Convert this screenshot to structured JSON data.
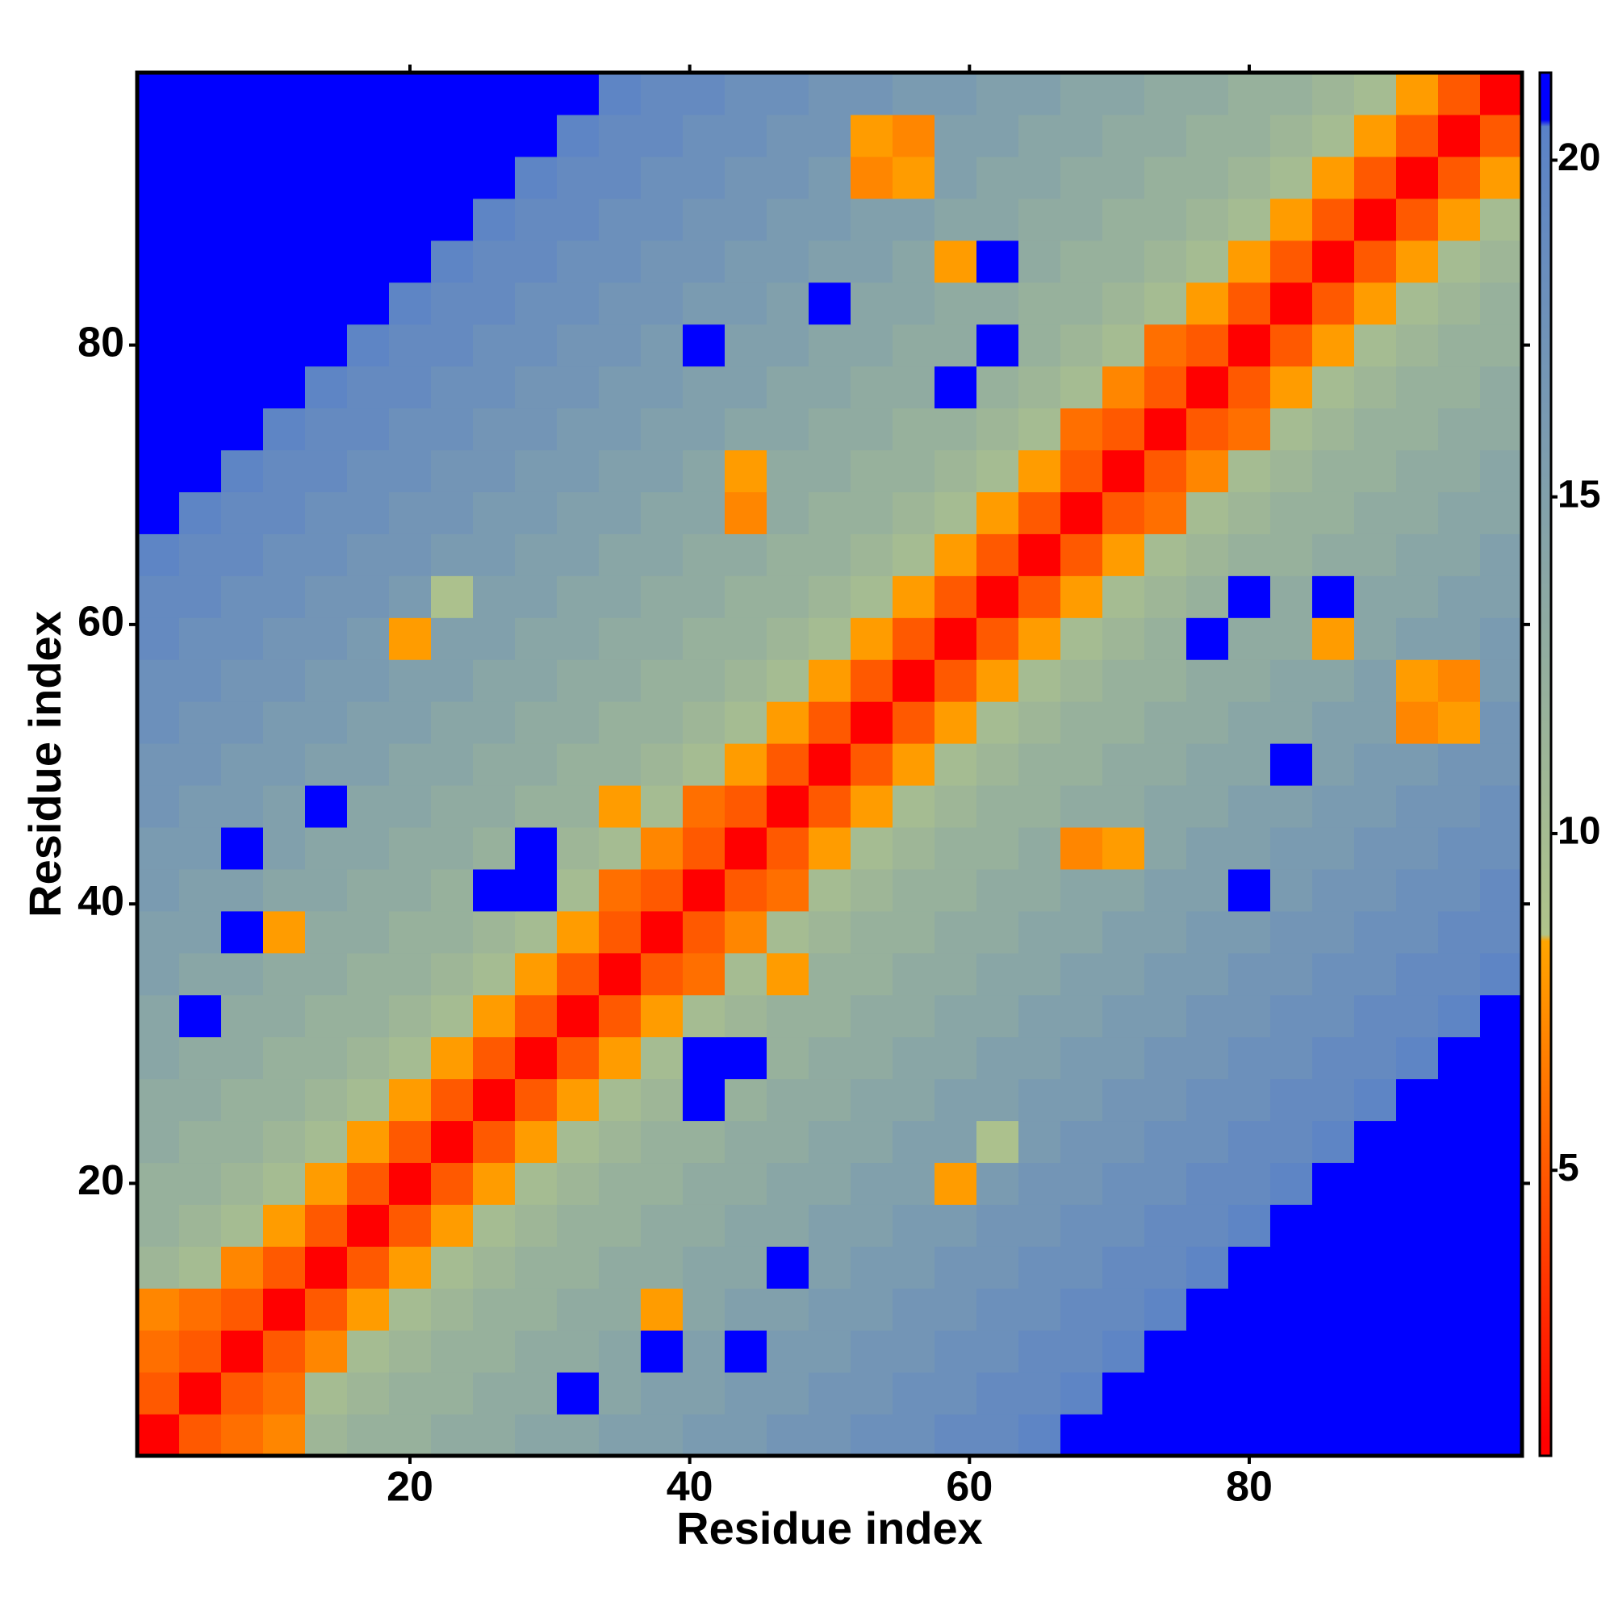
{
  "chart_data": {
    "type": "heatmap",
    "x_label": "Residue index",
    "y_label": "Residue index",
    "x": [
      2,
      5,
      8,
      11,
      14,
      17,
      20,
      23,
      26,
      29,
      32,
      35,
      38,
      41,
      44,
      47,
      50,
      53,
      56,
      59,
      62,
      65,
      68,
      71,
      74,
      77,
      80,
      83,
      86,
      89,
      92,
      95,
      98
    ],
    "y": [
      2,
      5,
      8,
      11,
      14,
      17,
      20,
      23,
      26,
      29,
      32,
      35,
      38,
      41,
      44,
      47,
      50,
      53,
      56,
      59,
      62,
      65,
      68,
      71,
      74,
      77,
      80,
      83,
      86,
      89,
      92,
      95,
      98
    ],
    "z": [
      [
        1,
        5,
        6,
        7,
        11,
        12,
        12,
        13,
        13,
        14,
        14,
        15,
        15,
        16,
        16,
        17,
        17,
        18,
        18,
        19,
        19,
        20,
        21,
        21,
        21,
        21,
        21,
        21,
        21,
        21,
        21,
        21,
        21
      ],
      [
        5,
        1,
        5,
        6,
        10,
        11,
        12,
        12,
        13,
        13,
        21,
        14,
        15,
        15,
        16,
        16,
        17,
        17,
        18,
        18,
        19,
        19,
        20,
        21,
        21,
        21,
        21,
        21,
        21,
        21,
        21,
        21,
        21
      ],
      [
        6,
        5,
        1,
        5,
        7,
        10,
        11,
        12,
        12,
        13,
        13,
        14,
        21,
        15,
        21,
        16,
        16,
        17,
        17,
        18,
        18,
        19,
        19,
        20,
        21,
        21,
        21,
        21,
        21,
        21,
        21,
        21,
        21
      ],
      [
        7,
        6,
        5,
        1,
        5,
        8,
        10,
        11,
        12,
        12,
        13,
        13,
        8,
        14,
        15,
        15,
        16,
        16,
        17,
        17,
        18,
        18,
        19,
        19,
        20,
        21,
        21,
        21,
        21,
        21,
        21,
        21,
        21
      ],
      [
        11,
        10,
        7,
        5,
        1,
        5,
        8,
        10,
        11,
        12,
        12,
        13,
        13,
        14,
        14,
        21,
        15,
        16,
        16,
        17,
        17,
        18,
        18,
        19,
        19,
        20,
        21,
        21,
        21,
        21,
        21,
        21,
        21
      ],
      [
        12,
        11,
        10,
        8,
        5,
        1,
        5,
        8,
        10,
        11,
        12,
        12,
        13,
        13,
        14,
        14,
        15,
        15,
        16,
        16,
        17,
        17,
        18,
        18,
        19,
        19,
        20,
        21,
        21,
        21,
        21,
        21,
        21
      ],
      [
        12,
        12,
        11,
        10,
        8,
        5,
        1,
        5,
        8,
        10,
        11,
        12,
        12,
        13,
        13,
        14,
        14,
        15,
        15,
        8,
        16,
        17,
        17,
        18,
        18,
        19,
        19,
        20,
        21,
        21,
        21,
        21,
        21
      ],
      [
        13,
        12,
        12,
        11,
        10,
        8,
        5,
        1,
        5,
        8,
        10,
        11,
        12,
        12,
        13,
        13,
        14,
        14,
        15,
        15,
        9,
        16,
        17,
        17,
        18,
        18,
        19,
        19,
        20,
        21,
        21,
        21,
        21
      ],
      [
        13,
        13,
        12,
        12,
        11,
        10,
        8,
        5,
        1,
        5,
        8,
        10,
        11,
        21,
        12,
        13,
        13,
        14,
        14,
        15,
        15,
        16,
        16,
        17,
        17,
        18,
        18,
        19,
        19,
        20,
        21,
        21,
        21
      ],
      [
        14,
        13,
        13,
        12,
        12,
        11,
        10,
        8,
        5,
        1,
        5,
        8,
        10,
        21,
        21,
        12,
        13,
        13,
        14,
        14,
        15,
        15,
        16,
        16,
        17,
        17,
        18,
        18,
        19,
        19,
        20,
        21,
        21
      ],
      [
        14,
        21,
        13,
        13,
        12,
        12,
        11,
        10,
        8,
        5,
        1,
        5,
        8,
        10,
        11,
        12,
        12,
        13,
        13,
        14,
        14,
        15,
        15,
        16,
        16,
        17,
        17,
        18,
        18,
        19,
        19,
        20,
        21
      ],
      [
        15,
        14,
        14,
        13,
        13,
        12,
        12,
        11,
        10,
        8,
        5,
        1,
        5,
        6,
        10,
        8,
        12,
        12,
        13,
        13,
        14,
        14,
        15,
        15,
        16,
        16,
        17,
        17,
        18,
        18,
        19,
        19,
        20
      ],
      [
        15,
        15,
        21,
        8,
        13,
        13,
        12,
        12,
        11,
        10,
        8,
        5,
        1,
        5,
        7,
        10,
        11,
        12,
        12,
        13,
        13,
        14,
        14,
        15,
        15,
        16,
        16,
        17,
        17,
        18,
        18,
        19,
        19
      ],
      [
        16,
        15,
        15,
        14,
        14,
        13,
        13,
        12,
        21,
        21,
        10,
        6,
        5,
        1,
        5,
        6,
        10,
        11,
        12,
        12,
        13,
        13,
        14,
        14,
        15,
        15,
        21,
        16,
        17,
        17,
        18,
        18,
        19
      ],
      [
        16,
        16,
        21,
        15,
        14,
        14,
        13,
        13,
        12,
        21,
        11,
        10,
        7,
        5,
        1,
        5,
        8,
        10,
        11,
        12,
        12,
        13,
        7,
        8,
        14,
        15,
        15,
        16,
        16,
        17,
        17,
        18,
        18
      ],
      [
        17,
        16,
        16,
        15,
        21,
        14,
        14,
        13,
        13,
        12,
        12,
        8,
        10,
        6,
        5,
        1,
        5,
        8,
        10,
        11,
        12,
        12,
        13,
        13,
        14,
        14,
        15,
        15,
        16,
        16,
        17,
        17,
        18
      ],
      [
        17,
        17,
        16,
        16,
        15,
        15,
        14,
        14,
        13,
        13,
        12,
        12,
        11,
        10,
        8,
        5,
        1,
        5,
        8,
        10,
        11,
        12,
        12,
        13,
        13,
        14,
        14,
        21,
        15,
        16,
        16,
        17,
        17
      ],
      [
        18,
        17,
        17,
        16,
        16,
        15,
        15,
        14,
        14,
        13,
        13,
        12,
        12,
        11,
        10,
        8,
        5,
        1,
        5,
        8,
        10,
        11,
        12,
        12,
        13,
        13,
        14,
        14,
        15,
        15,
        7,
        8,
        17
      ],
      [
        18,
        18,
        17,
        17,
        16,
        16,
        15,
        15,
        14,
        14,
        13,
        13,
        12,
        12,
        11,
        10,
        8,
        5,
        1,
        5,
        8,
        10,
        11,
        12,
        12,
        13,
        13,
        14,
        14,
        15,
        8,
        7,
        16
      ],
      [
        19,
        18,
        18,
        17,
        17,
        16,
        8,
        15,
        15,
        14,
        14,
        13,
        13,
        12,
        12,
        11,
        10,
        8,
        5,
        1,
        5,
        8,
        10,
        11,
        12,
        21,
        13,
        13,
        8,
        14,
        15,
        15,
        16
      ],
      [
        19,
        19,
        18,
        18,
        17,
        17,
        16,
        9,
        15,
        15,
        14,
        14,
        13,
        13,
        12,
        12,
        11,
        10,
        8,
        5,
        1,
        5,
        8,
        10,
        11,
        12,
        21,
        13,
        21,
        14,
        14,
        15,
        15
      ],
      [
        20,
        19,
        19,
        18,
        18,
        17,
        17,
        16,
        16,
        15,
        15,
        14,
        14,
        13,
        13,
        12,
        12,
        11,
        10,
        8,
        5,
        1,
        5,
        8,
        10,
        11,
        12,
        12,
        13,
        13,
        14,
        14,
        15
      ],
      [
        21,
        20,
        19,
        19,
        18,
        18,
        17,
        17,
        16,
        16,
        15,
        15,
        14,
        14,
        7,
        13,
        12,
        12,
        11,
        10,
        8,
        5,
        1,
        5,
        6,
        10,
        11,
        12,
        12,
        13,
        13,
        14,
        14
      ],
      [
        21,
        21,
        20,
        19,
        19,
        18,
        18,
        17,
        17,
        16,
        16,
        15,
        15,
        14,
        8,
        13,
        13,
        12,
        12,
        11,
        10,
        8,
        5,
        1,
        5,
        7,
        10,
        11,
        12,
        12,
        13,
        13,
        14
      ],
      [
        21,
        21,
        21,
        20,
        19,
        19,
        18,
        18,
        17,
        17,
        16,
        16,
        15,
        15,
        14,
        14,
        13,
        13,
        12,
        12,
        11,
        10,
        6,
        5,
        1,
        5,
        6,
        10,
        11,
        12,
        12,
        13,
        13
      ],
      [
        21,
        21,
        21,
        21,
        20,
        19,
        19,
        18,
        18,
        17,
        17,
        16,
        16,
        15,
        15,
        14,
        14,
        13,
        13,
        21,
        12,
        11,
        10,
        7,
        5,
        1,
        5,
        8,
        10,
        11,
        12,
        12,
        13
      ],
      [
        21,
        21,
        21,
        21,
        21,
        20,
        19,
        19,
        18,
        18,
        17,
        17,
        16,
        21,
        15,
        15,
        14,
        14,
        13,
        13,
        21,
        12,
        11,
        10,
        6,
        5,
        1,
        5,
        8,
        10,
        11,
        12,
        12
      ],
      [
        21,
        21,
        21,
        21,
        21,
        21,
        20,
        19,
        19,
        18,
        18,
        17,
        17,
        16,
        16,
        15,
        21,
        14,
        14,
        13,
        13,
        12,
        12,
        11,
        10,
        8,
        5,
        1,
        5,
        8,
        10,
        11,
        12
      ],
      [
        21,
        21,
        21,
        21,
        21,
        21,
        21,
        20,
        19,
        19,
        18,
        18,
        17,
        17,
        16,
        16,
        15,
        15,
        14,
        8,
        21,
        13,
        12,
        12,
        11,
        10,
        8,
        5,
        1,
        5,
        8,
        10,
        11
      ],
      [
        21,
        21,
        21,
        21,
        21,
        21,
        21,
        21,
        20,
        19,
        19,
        18,
        18,
        17,
        17,
        16,
        16,
        15,
        15,
        14,
        14,
        13,
        13,
        12,
        12,
        11,
        10,
        8,
        5,
        1,
        5,
        8,
        10
      ],
      [
        21,
        21,
        21,
        21,
        21,
        21,
        21,
        21,
        21,
        20,
        19,
        19,
        18,
        18,
        17,
        17,
        16,
        7,
        8,
        15,
        14,
        14,
        13,
        13,
        12,
        12,
        11,
        10,
        8,
        5,
        1,
        5,
        8
      ],
      [
        21,
        21,
        21,
        21,
        21,
        21,
        21,
        21,
        21,
        21,
        20,
        19,
        19,
        18,
        18,
        17,
        17,
        8,
        7,
        15,
        15,
        14,
        14,
        13,
        13,
        12,
        12,
        11,
        10,
        8,
        5,
        1,
        5
      ],
      [
        21,
        21,
        21,
        21,
        21,
        21,
        21,
        21,
        21,
        21,
        21,
        20,
        19,
        19,
        18,
        18,
        17,
        17,
        16,
        16,
        15,
        15,
        14,
        14,
        13,
        13,
        12,
        12,
        11,
        10,
        8,
        5,
        1
      ]
    ],
    "xlim": [
      0.5,
      99.5
    ],
    "ylim": [
      0.5,
      99.5
    ],
    "xticks": [
      20,
      40,
      60,
      80
    ],
    "yticks": [
      20,
      40,
      60,
      80
    ],
    "colorscale": [
      [
        1,
        "#ff0000"
      ],
      [
        8.4,
        "#ffa500"
      ],
      [
        8.5,
        "#b0c48a"
      ],
      [
        20.5,
        "#5a82c8"
      ],
      [
        20.6,
        "#0000ff"
      ],
      [
        21.3,
        "#0000ff"
      ]
    ],
    "zlim": [
      0.76,
      21.3
    ],
    "zticks": [
      5,
      10,
      15,
      20
    ]
  }
}
